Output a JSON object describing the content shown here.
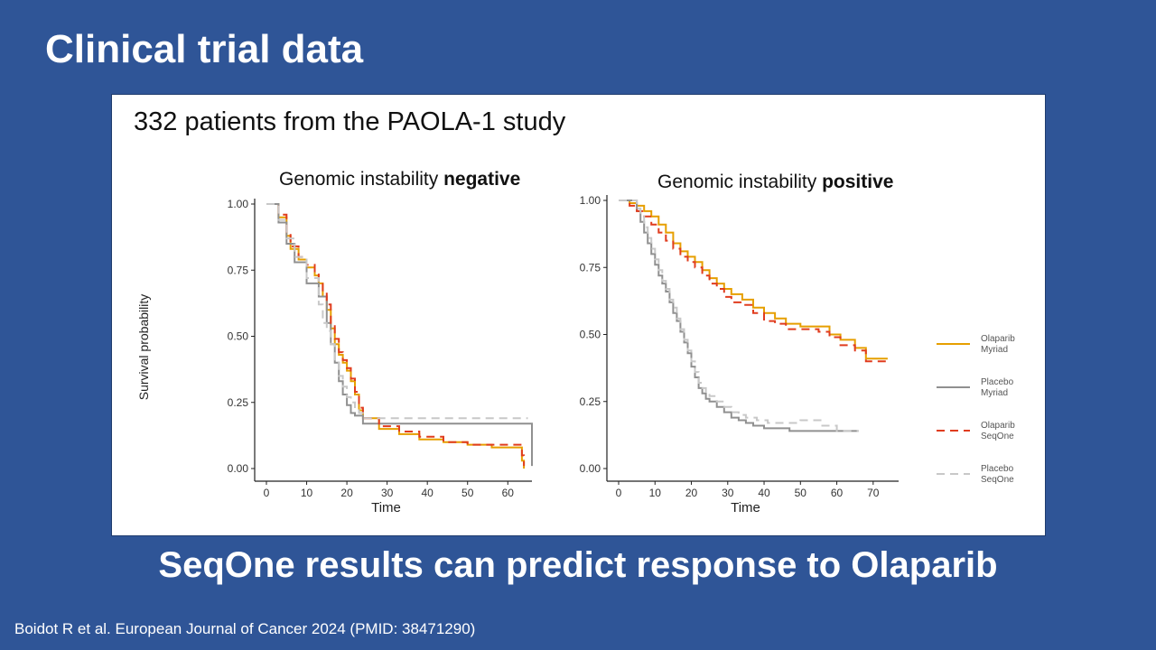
{
  "slide": {
    "title": "Clinical trial data",
    "caption": "332 patients from the PAOLA-1 study",
    "conclusion": "SeqOne results can predict response to Olaparib",
    "citation": "Boidot R et al. European Journal of Cancer 2024 (PMID:  38471290)"
  },
  "chart_data": [
    {
      "type": "line",
      "title_prefix": "Genomic instability ",
      "title_emphasis": "negative",
      "xlabel": "Time",
      "ylabel": "Survival probability",
      "xlim": [
        0,
        66
      ],
      "ylim": [
        0,
        1
      ],
      "xticks": [
        0,
        10,
        20,
        30,
        40,
        50,
        60
      ],
      "yticks": [
        "0.00",
        "0.25",
        "0.50",
        "0.75",
        "1.00"
      ],
      "series": [
        {
          "name": "Olaparib Myriad",
          "color": "#e69f00",
          "dash": "solid",
          "x": [
            0,
            3,
            5,
            6,
            8,
            10,
            12,
            13,
            14,
            15,
            16,
            17,
            18,
            19,
            20,
            21,
            22,
            23,
            24,
            28,
            33,
            38,
            44,
            50,
            56,
            62,
            63.5,
            64
          ],
          "y": [
            1,
            0.95,
            0.88,
            0.83,
            0.79,
            0.76,
            0.73,
            0.7,
            0.65,
            0.6,
            0.53,
            0.47,
            0.43,
            0.4,
            0.37,
            0.33,
            0.28,
            0.22,
            0.19,
            0.15,
            0.13,
            0.11,
            0.1,
            0.09,
            0.08,
            0.08,
            0.03,
            0
          ]
        },
        {
          "name": "Placebo Myriad",
          "color": "#909090",
          "dash": "solid",
          "x": [
            0,
            3,
            5,
            7,
            10,
            13,
            15,
            16,
            17,
            18,
            19,
            20,
            21,
            22,
            23,
            24,
            40,
            60,
            66,
            66
          ],
          "y": [
            1,
            0.93,
            0.85,
            0.78,
            0.7,
            0.65,
            0.55,
            0.47,
            0.4,
            0.33,
            0.28,
            0.24,
            0.21,
            0.2,
            0.2,
            0.17,
            0.17,
            0.17,
            0.17,
            0.01
          ]
        },
        {
          "name": "Olaparib SeqOne",
          "color": "#e03c1e",
          "dash": "9,6",
          "x": [
            0,
            3,
            5,
            6,
            8,
            10,
            12,
            13,
            14,
            15,
            16,
            17,
            18,
            19,
            20,
            21,
            22,
            23,
            24,
            28,
            33,
            38,
            44,
            50,
            56,
            62,
            63.5,
            64
          ],
          "y": [
            1,
            0.96,
            0.89,
            0.84,
            0.8,
            0.77,
            0.74,
            0.71,
            0.67,
            0.62,
            0.55,
            0.49,
            0.44,
            0.41,
            0.38,
            0.34,
            0.29,
            0.23,
            0.19,
            0.16,
            0.14,
            0.12,
            0.1,
            0.09,
            0.09,
            0.09,
            0.05,
            0.01
          ]
        },
        {
          "name": "Placebo SeqOne",
          "color": "#c8c8c8",
          "dash": "9,6",
          "x": [
            0,
            3,
            5,
            7,
            10,
            13,
            14,
            15,
            16,
            17,
            18,
            19,
            20,
            21,
            22,
            23,
            24,
            40,
            60,
            65
          ],
          "y": [
            1,
            0.94,
            0.87,
            0.8,
            0.72,
            0.62,
            0.55,
            0.52,
            0.47,
            0.4,
            0.35,
            0.31,
            0.27,
            0.25,
            0.22,
            0.21,
            0.19,
            0.19,
            0.19,
            0.19
          ]
        }
      ]
    },
    {
      "type": "line",
      "title_prefix": "Genomic instability ",
      "title_emphasis": "positive",
      "xlabel": "Time",
      "ylabel": "",
      "xlim": [
        0,
        77
      ],
      "ylim": [
        0,
        1
      ],
      "xticks": [
        0,
        10,
        20,
        30,
        40,
        50,
        60,
        70
      ],
      "yticks": [
        "0.00",
        "0.25",
        "0.50",
        "0.75",
        "1.00"
      ],
      "series": [
        {
          "name": "Olaparib Myriad",
          "color": "#e69f00",
          "dash": "solid",
          "x": [
            0,
            3,
            5,
            7,
            9,
            11,
            13,
            15,
            17,
            19,
            21,
            23,
            25,
            27,
            29,
            31,
            34,
            37,
            40,
            43,
            46,
            50,
            55,
            58,
            61,
            65,
            68,
            74
          ],
          "y": [
            1,
            0.99,
            0.98,
            0.96,
            0.94,
            0.91,
            0.88,
            0.84,
            0.81,
            0.79,
            0.77,
            0.74,
            0.71,
            0.69,
            0.67,
            0.65,
            0.63,
            0.6,
            0.58,
            0.56,
            0.54,
            0.53,
            0.53,
            0.5,
            0.48,
            0.45,
            0.41,
            0.41
          ]
        },
        {
          "name": "Placebo Myriad",
          "color": "#909090",
          "dash": "solid",
          "x": [
            0,
            3,
            5,
            6,
            7,
            8,
            9,
            10,
            11,
            12,
            13,
            14,
            15,
            16,
            17,
            18,
            19,
            20,
            21,
            22,
            23,
            24,
            25,
            27,
            29,
            31,
            33,
            35,
            37,
            40,
            47,
            55,
            60,
            66
          ],
          "y": [
            1,
            1,
            0.96,
            0.92,
            0.88,
            0.84,
            0.8,
            0.76,
            0.72,
            0.69,
            0.66,
            0.62,
            0.58,
            0.55,
            0.51,
            0.47,
            0.43,
            0.38,
            0.34,
            0.3,
            0.28,
            0.26,
            0.25,
            0.23,
            0.21,
            0.19,
            0.18,
            0.17,
            0.16,
            0.15,
            0.14,
            0.14,
            0.14,
            0.14
          ]
        },
        {
          "name": "Olaparib SeqOne",
          "color": "#e03c1e",
          "dash": "9,6",
          "x": [
            0,
            3,
            5,
            7,
            9,
            11,
            13,
            15,
            17,
            19,
            21,
            23,
            25,
            27,
            29,
            31,
            34,
            37,
            40,
            43,
            46,
            50,
            55,
            58,
            61,
            65,
            68,
            74
          ],
          "y": [
            1,
            0.98,
            0.96,
            0.94,
            0.91,
            0.88,
            0.85,
            0.82,
            0.79,
            0.77,
            0.75,
            0.72,
            0.69,
            0.67,
            0.64,
            0.62,
            0.61,
            0.58,
            0.55,
            0.54,
            0.52,
            0.52,
            0.51,
            0.49,
            0.46,
            0.44,
            0.4,
            0.4
          ]
        },
        {
          "name": "Placebo SeqOne",
          "color": "#c8c8c8",
          "dash": "9,6",
          "x": [
            0,
            3,
            5,
            6,
            7,
            8,
            9,
            10,
            11,
            12,
            13,
            14,
            15,
            16,
            17,
            18,
            19,
            20,
            21,
            22,
            23,
            24,
            25,
            27,
            29,
            31,
            33,
            35,
            38,
            41,
            46,
            50,
            56,
            60,
            66
          ],
          "y": [
            1,
            1,
            0.97,
            0.94,
            0.9,
            0.86,
            0.82,
            0.78,
            0.74,
            0.7,
            0.67,
            0.63,
            0.6,
            0.56,
            0.52,
            0.48,
            0.44,
            0.4,
            0.36,
            0.32,
            0.3,
            0.28,
            0.27,
            0.25,
            0.23,
            0.21,
            0.2,
            0.19,
            0.18,
            0.17,
            0.17,
            0.18,
            0.16,
            0.14,
            0.14
          ]
        }
      ]
    }
  ],
  "legend": {
    "items": [
      {
        "line1": "Olaparib",
        "line2": "Myriad",
        "color": "#e69f00",
        "dash": "solid"
      },
      {
        "line1": "Placebo",
        "line2": "Myriad",
        "color": "#909090",
        "dash": "solid"
      },
      {
        "line1": "Olaparib",
        "line2": "SeqOne",
        "color": "#e03c1e",
        "dash": "9,6"
      },
      {
        "line1": "Placebo",
        "line2": "SeqOne",
        "color": "#c8c8c8",
        "dash": "9,6"
      }
    ]
  }
}
